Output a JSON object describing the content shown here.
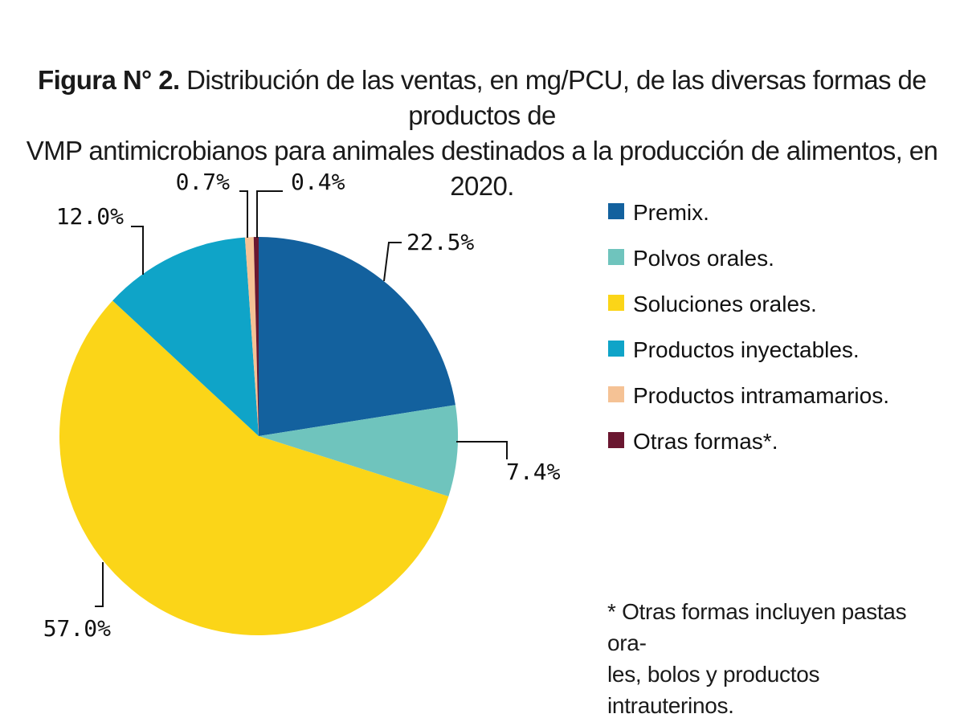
{
  "figure": {
    "title_bold": "Figura N° 2.",
    "title_line1": "Distribución de las ventas, en mg/PCU, de las diversas formas de productos de",
    "title_line2": "VMP antimicrobianos para animales destinados a la producción de alimentos, en 2020."
  },
  "chart_data": {
    "type": "pie",
    "title": "Distribución de las ventas, en mg/PCU, de las diversas formas de productos de VMP antimicrobianos para animales destinados a la producción de alimentos, en 2020.",
    "slices": [
      {
        "name": "Premix.",
        "value": 22.5,
        "label": "22.5%",
        "color": "#13619e"
      },
      {
        "name": "Polvos orales.",
        "value": 7.4,
        "label": "7.4%",
        "color": "#6fc4bd"
      },
      {
        "name": "Soluciones orales.",
        "value": 57.0,
        "label": "57.0%",
        "color": "#fbd518"
      },
      {
        "name": "Productos inyectables.",
        "value": 12.0,
        "label": "12.0%",
        "color": "#0fa4c8"
      },
      {
        "name": "Productos intramamarios.",
        "value": 0.7,
        "label": "0.7%",
        "color": "#f5c295"
      },
      {
        "name": "Otras formas*.",
        "value": 0.4,
        "label": "0.4%",
        "color": "#6a1730"
      }
    ],
    "start": "12 o'clock",
    "direction": "clockwise",
    "legend_position": "right"
  },
  "note": {
    "line1": "* Otras formas incluyen pastas ora-",
    "line2": "les, bolos y productos intrauterinos."
  }
}
